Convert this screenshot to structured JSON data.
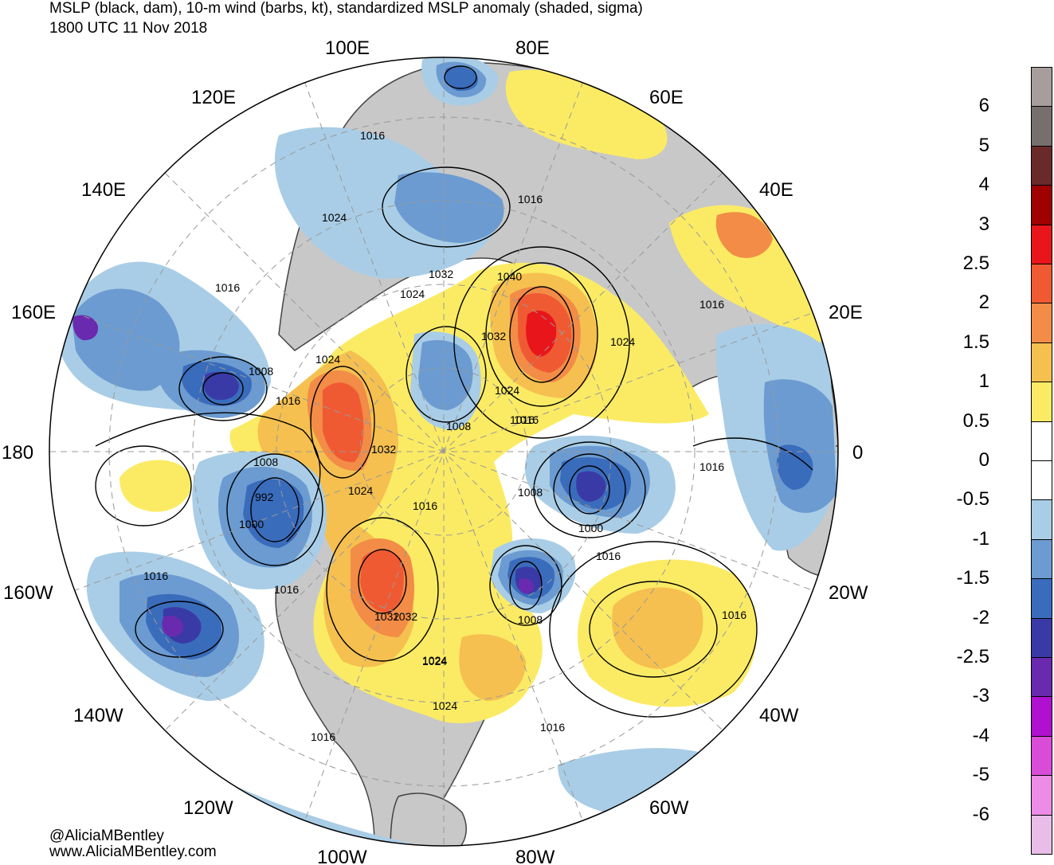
{
  "title": {
    "line1": "MSLP (black, dam), 10-m wind (barbs, kt), standardized MSLP anomaly (shaded, sigma)",
    "line2": "1800 UTC 11 Nov 2018"
  },
  "longitude_labels": [
    "100E",
    "80E",
    "120E",
    "60E",
    "140E",
    "40E",
    "160E",
    "20E",
    "180",
    "0",
    "160W",
    "20W",
    "140W",
    "40W",
    "120W",
    "60W",
    "100W",
    "80W"
  ],
  "contour_labels": [
    "1016",
    "1016",
    "1024",
    "1032",
    "1040",
    "1024",
    "1016",
    "1016",
    "1008",
    "1024",
    "1016",
    "1032",
    "1024",
    "1032",
    "1024",
    "1008",
    "1016",
    "1032",
    "1024",
    "1024",
    "1008",
    "1016",
    "1008",
    "992",
    "1000",
    "1016",
    "1016",
    "1032",
    "1024",
    "1024",
    "1016",
    "1016",
    "1000",
    "1016",
    "1008",
    "1016",
    "1016",
    "1016"
  ],
  "credits": {
    "twitter": "@AliciaMBentley",
    "website": "www.AliciaMBentley.com"
  },
  "colorbar": {
    "tick_labels": [
      "6",
      "5",
      "4",
      "3",
      "2.5",
      "2",
      "1.5",
      "1",
      "0.5",
      "0",
      "-0.5",
      "-1",
      "-1.5",
      "-2",
      "-2.5",
      "-3",
      "-4",
      "-5",
      "-6"
    ],
    "colors": [
      "#a79d9d",
      "#776e6e",
      "#6b2a2a",
      "#a00000",
      "#e8161a",
      "#f05a32",
      "#f28c46",
      "#f5c050",
      "#fbeb64",
      "#ffffff",
      "#ffffff",
      "#a9cde6",
      "#6b9bd1",
      "#3a6cbc",
      "#3a3aa6",
      "#6a2aaf",
      "#b010d0",
      "#d84cd8",
      "#ec8ce6",
      "#e8bee8"
    ]
  },
  "anomaly_colors": {
    "land": "#c8c8c8",
    "neg_0_5": "#a9cde6",
    "neg_1": "#6b9bd1",
    "neg_1_5": "#3a6cbc",
    "neg_2": "#3a3aa6",
    "neg_2_5": "#6a2aaf",
    "pos_0_5": "#fbeb64",
    "pos_1": "#f5c050",
    "pos_1_5": "#f28c46",
    "pos_2": "#f05a32",
    "pos_2_5": "#e8161a"
  }
}
